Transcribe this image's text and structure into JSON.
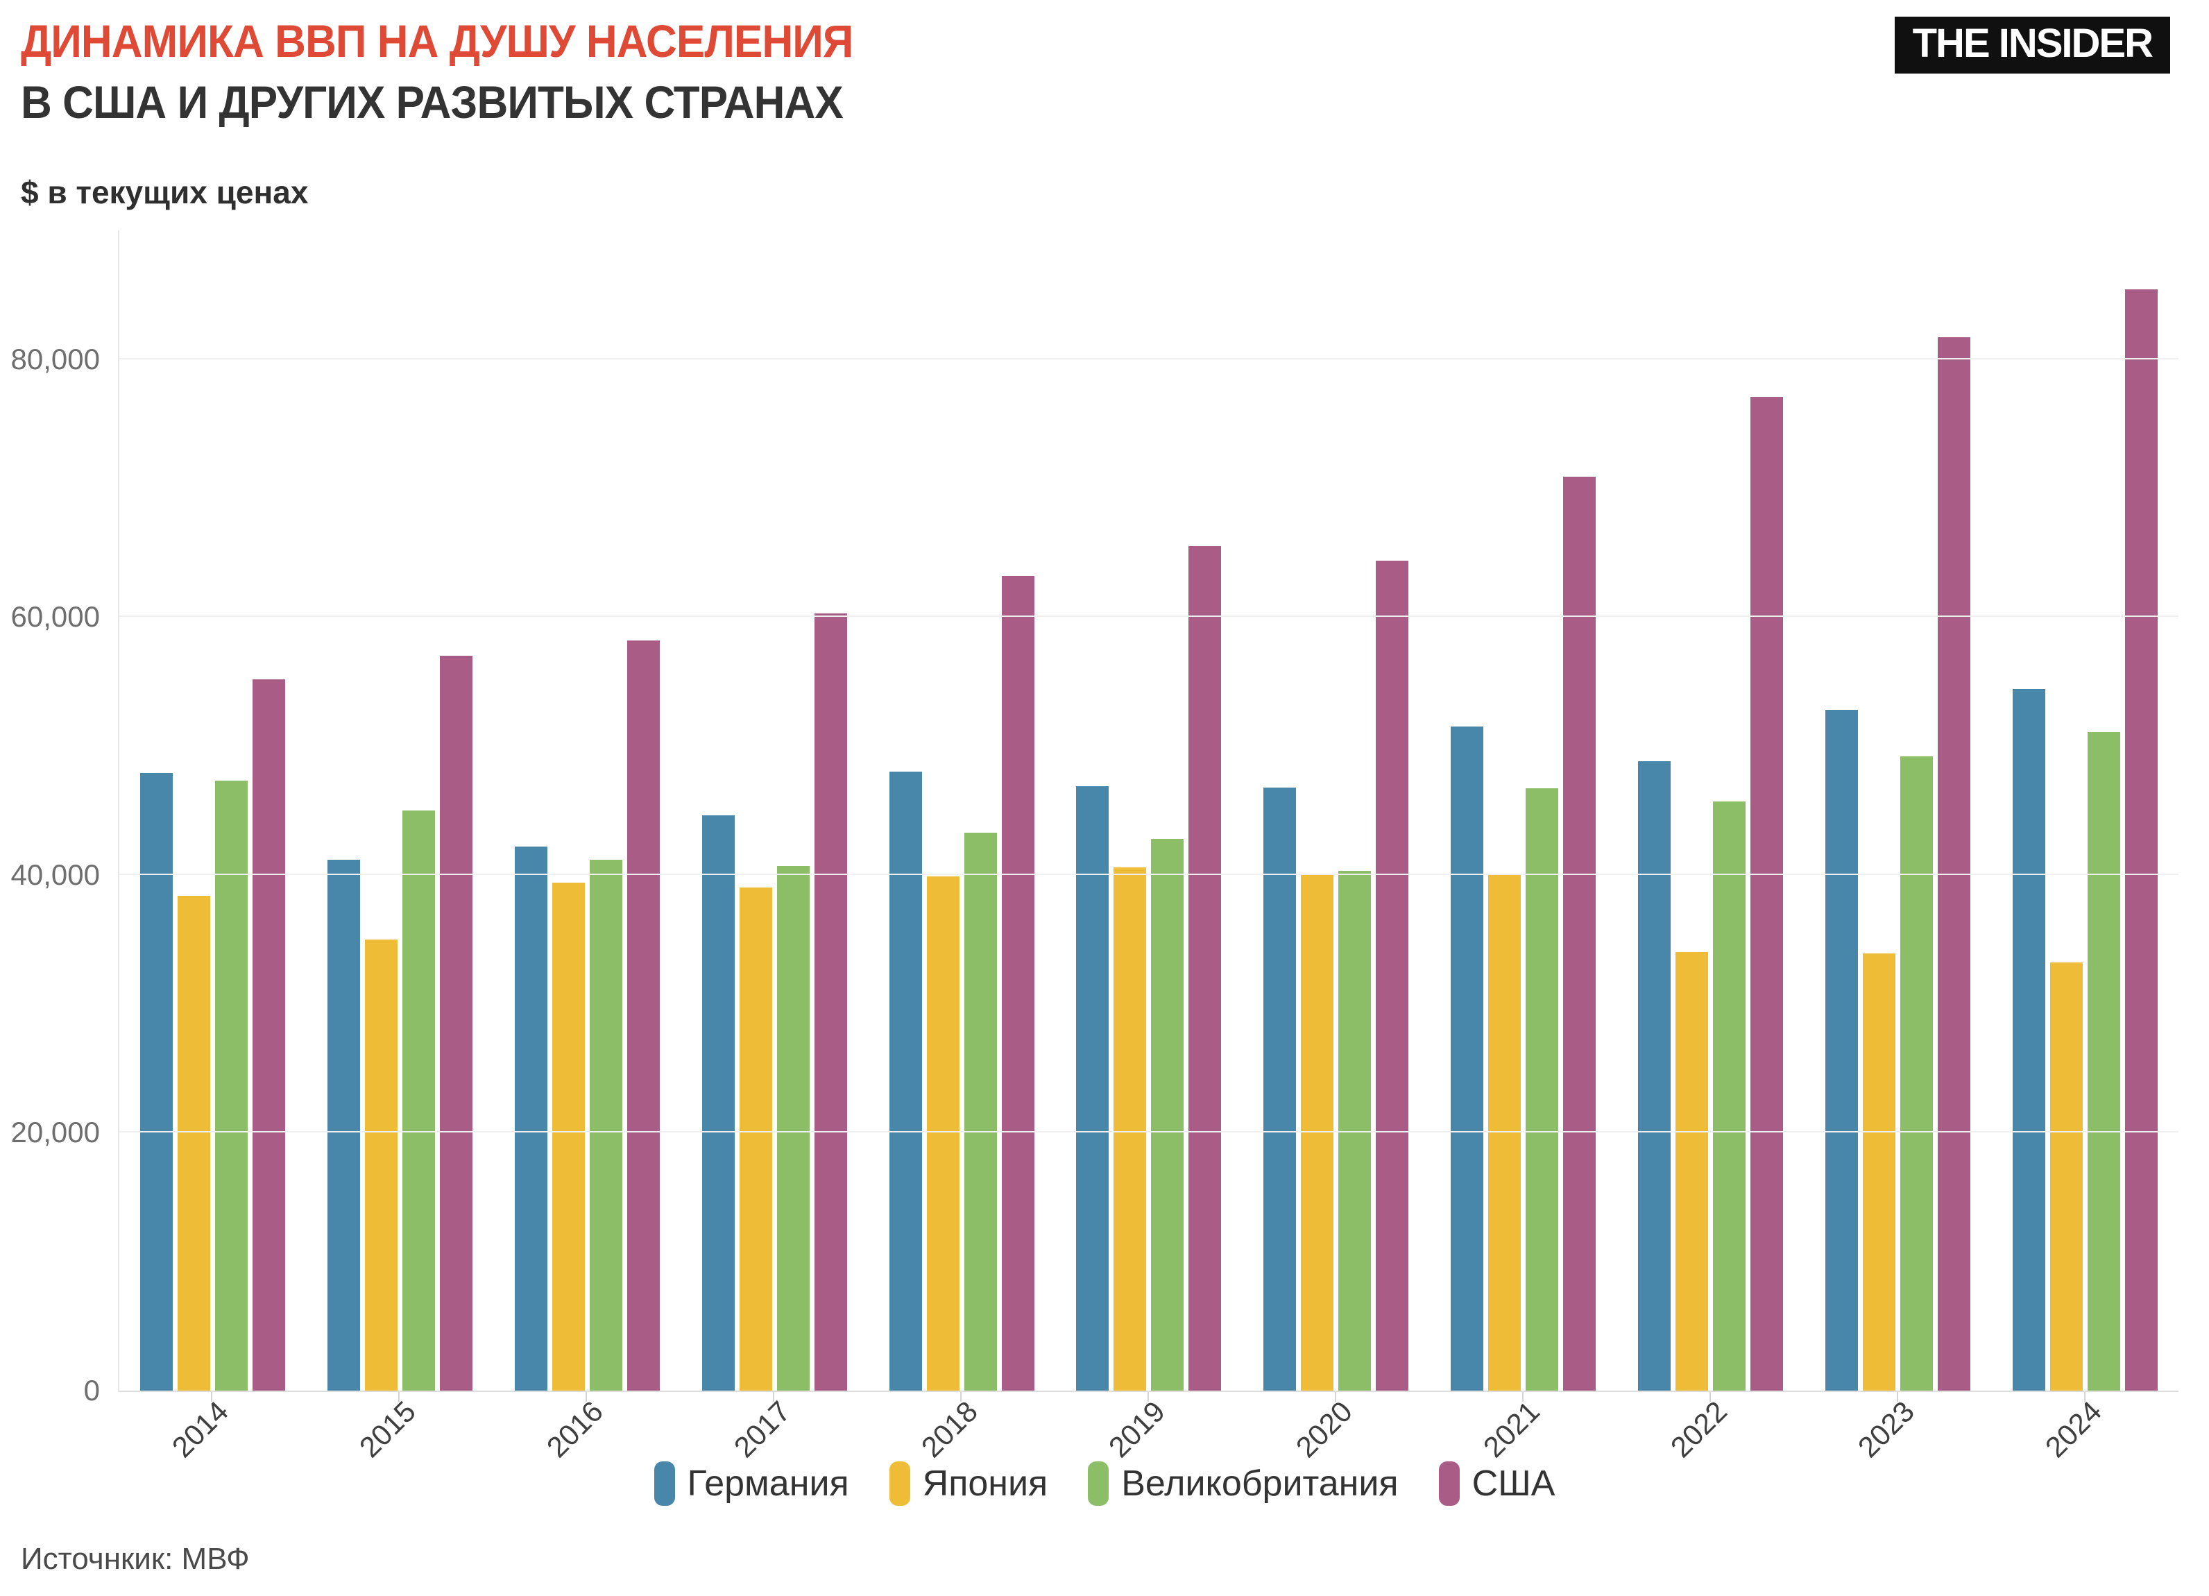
{
  "header": {
    "title_line1": "ДИНАМИКА ВВП НА ДУШУ НАСЕЛЕНИЯ",
    "title_line2": "В США И ДРУГИХ РАЗВИТЫХ СТРАНАХ",
    "subtitle": "$ в текущих ценах",
    "logo_text": "THE INSIDER"
  },
  "source_note": "Источнкик: МВФ",
  "colors": {
    "title_accent": "#df4a36",
    "germany": "#4886aa",
    "japan": "#efbc38",
    "uk": "#8cbe68",
    "usa": "#a95c86"
  },
  "chart_data": {
    "type": "bar",
    "title": "Динамика ВВП на душу населения в США и других развитых странах",
    "ylabel": "$ в текущих ценах",
    "xlabel": "",
    "grid": true,
    "legend_position": "bottom",
    "ylim": [
      0,
      90000
    ],
    "yticks": [
      0,
      20000,
      40000,
      60000,
      80000
    ],
    "ytick_labels": [
      "0",
      "20,000",
      "40,000",
      "60,000",
      "80,000"
    ],
    "categories": [
      "2014",
      "2015",
      "2016",
      "2017",
      "2018",
      "2019",
      "2020",
      "2021",
      "2022",
      "2023",
      "2024"
    ],
    "series": [
      {
        "name": "Германия",
        "key": "germany",
        "values": [
          47900,
          41200,
          42200,
          44600,
          48000,
          46900,
          46800,
          51500,
          48800,
          52800,
          54400
        ]
      },
      {
        "name": "Япония",
        "key": "japan",
        "values": [
          38400,
          35000,
          39400,
          39000,
          39900,
          40600,
          40100,
          40000,
          34000,
          33900,
          33200
        ]
      },
      {
        "name": "Великобритания",
        "key": "uk",
        "values": [
          47300,
          45000,
          41200,
          40700,
          43300,
          42800,
          40300,
          46700,
          45700,
          49200,
          51100
        ]
      },
      {
        "name": "США",
        "key": "usa",
        "values": [
          55200,
          57000,
          58200,
          60300,
          63200,
          65500,
          64400,
          70900,
          77100,
          81700,
          85400
        ]
      }
    ]
  }
}
